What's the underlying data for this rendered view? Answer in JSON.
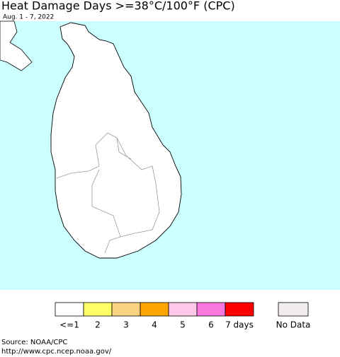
{
  "header": {
    "title": "Heat Damage Days >=38°C/100°F (CPC)",
    "subtitle": "Aug. 1 - 7, 2022"
  },
  "legend": {
    "items": [
      {
        "label": "<=1",
        "color": "#ffffff"
      },
      {
        "label": "2",
        "color": "#ffff66"
      },
      {
        "label": "3",
        "color": "#fbd27f"
      },
      {
        "label": "4",
        "color": "#ffa600"
      },
      {
        "label": "5",
        "color": "#ffc8e8"
      },
      {
        "label": "6",
        "color": "#f878e0"
      },
      {
        "label": "7 days",
        "color": "#ff0000"
      }
    ],
    "no_data": {
      "label": "No Data",
      "color": "#f0ecf0"
    }
  },
  "footer": {
    "source": "Source: NOAA/CPC",
    "url": "http://www.cpc.ncep.noaa.gov/"
  }
}
